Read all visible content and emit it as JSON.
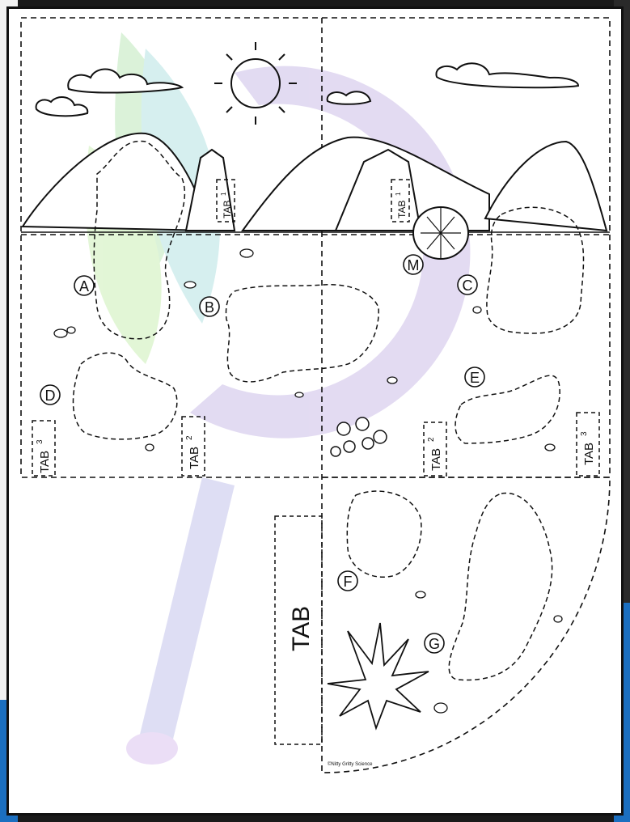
{
  "pieces": {
    "a": "A",
    "b": "B",
    "c": "C",
    "d": "D",
    "e": "E",
    "f": "F",
    "g": "G",
    "m": "M"
  },
  "tabs": {
    "tab1_left": "TAB",
    "tab1_left_num": "1",
    "tab1_right": "TAB",
    "tab1_right_num": "1",
    "tab2_left": "TAB",
    "tab2_left_num": "2",
    "tab2_right": "TAB",
    "tab2_right_num": "2",
    "tab3_left": "TAB",
    "tab3_left_num": "3",
    "tab3_right": "TAB",
    "tab3_right_num": "3",
    "tab_big": "TAB"
  },
  "copyright": "©Nitty Gritty Science"
}
